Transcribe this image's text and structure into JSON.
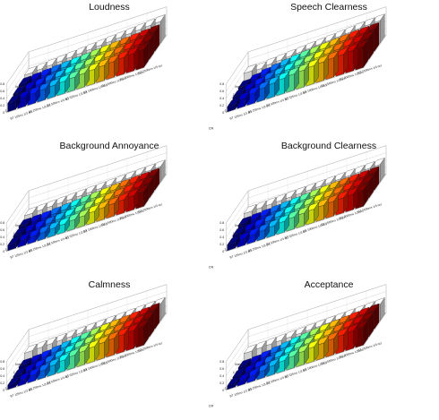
{
  "chart_data": [
    {
      "type": "bar",
      "title": "Loudness",
      "zlim": [
        0,
        0.8
      ],
      "zticks": [
        "0",
        "0.2",
        "0.4",
        "0.6",
        "0.8"
      ],
      "depth_ticks": [
        "linear",
        "1.5",
        "2",
        "3"
      ],
      "depth_label": "CR",
      "row_labels": [
        "BT 7500ms 1/3 oct",
        "BT 3000ms 1/3 oct",
        "BT 1500ms 1/3 oct",
        "BT 1000ms 1/3 oct",
        "BT 625ms 1/3 oct",
        "BT 500ms 1/3 oct",
        "BT 250ms 1/3 oct",
        "BT 125ms 1/3 oct"
      ],
      "series": [
        {
          "name": "linear",
          "values": [
            0.35,
            0.37,
            0.39,
            0.41,
            0.43,
            0.45,
            0.47,
            0.49,
            0.51,
            0.53,
            0.55,
            0.57,
            0.59,
            0.61
          ]
        },
        {
          "name": "1.5",
          "values": [
            0.3,
            0.32,
            0.34,
            0.36,
            0.38,
            0.4,
            0.42,
            0.44,
            0.46,
            0.48,
            0.5,
            0.52,
            0.54,
            0.56
          ]
        },
        {
          "name": "2",
          "values": [
            0.27,
            0.29,
            0.31,
            0.33,
            0.35,
            0.37,
            0.39,
            0.41,
            0.43,
            0.45,
            0.47,
            0.49,
            0.51,
            0.53
          ]
        },
        {
          "name": "3",
          "values": [
            0.24,
            0.26,
            0.28,
            0.3,
            0.32,
            0.34,
            0.36,
            0.38,
            0.4,
            0.42,
            0.44,
            0.46,
            0.48,
            0.5
          ]
        }
      ]
    },
    {
      "type": "bar",
      "title": "Speech Clearness",
      "zlim": [
        0,
        0.8
      ],
      "zticks": [
        "0",
        "0.2",
        "0.4",
        "0.6",
        "0.8"
      ],
      "depth_ticks": [
        "linear",
        "1.5",
        "2",
        "3"
      ],
      "depth_label": "CR",
      "row_labels": [
        "BT 7500ms 1/3 oct",
        "BT 3000ms 1/3 oct",
        "BT 1500ms 1/3 oct",
        "BT 1000ms 1/3 oct",
        "BT 625ms 1/3 oct",
        "BT 500ms 1/3 oct",
        "BT 250ms 1/3 oct",
        "BT 125ms 1/3 oct"
      ],
      "series": [
        {
          "name": "linear",
          "values": [
            0.4,
            0.38,
            0.42,
            0.44,
            0.46,
            0.48,
            0.5,
            0.52,
            0.54,
            0.56,
            0.58,
            0.6,
            0.62,
            0.63
          ]
        },
        {
          "name": "1.5",
          "values": [
            0.22,
            0.3,
            0.36,
            0.4,
            0.44,
            0.47,
            0.5,
            0.52,
            0.54,
            0.56,
            0.58,
            0.6,
            0.61,
            0.62
          ]
        },
        {
          "name": "2",
          "values": [
            0.18,
            0.26,
            0.32,
            0.38,
            0.42,
            0.45,
            0.48,
            0.5,
            0.52,
            0.54,
            0.56,
            0.58,
            0.59,
            0.6
          ]
        },
        {
          "name": "3",
          "values": [
            0.14,
            0.22,
            0.28,
            0.34,
            0.38,
            0.42,
            0.45,
            0.47,
            0.5,
            0.52,
            0.54,
            0.55,
            0.57,
            0.58
          ]
        }
      ]
    },
    {
      "type": "bar",
      "title": "Background Annoyance",
      "zlim": [
        0,
        0.8
      ],
      "zticks": [
        "0",
        "0.2",
        "0.4",
        "0.6",
        "0.8"
      ],
      "depth_ticks": [
        "linear",
        "1.5",
        "2",
        "3"
      ],
      "depth_label": "CR",
      "row_labels": [
        "BT 7500ms 1/3 oct",
        "BT 3000ms 1/3 oct",
        "BT 1500ms 1/3 oct",
        "BT 1000ms 1/3 oct",
        "BT 625ms 1/3 oct",
        "BT 500ms 1/3 oct",
        "BT 250ms 1/3 oct",
        "BT 125ms 1/3 oct"
      ],
      "series": [
        {
          "name": "linear",
          "values": [
            0.3,
            0.31,
            0.32,
            0.33,
            0.34,
            0.35,
            0.36,
            0.37,
            0.38,
            0.39,
            0.4,
            0.41,
            0.42,
            0.43
          ]
        },
        {
          "name": "1.5",
          "values": [
            0.22,
            0.23,
            0.24,
            0.26,
            0.28,
            0.3,
            0.32,
            0.34,
            0.36,
            0.38,
            0.4,
            0.41,
            0.42,
            0.43
          ]
        },
        {
          "name": "2",
          "values": [
            0.18,
            0.19,
            0.2,
            0.22,
            0.24,
            0.26,
            0.28,
            0.3,
            0.33,
            0.35,
            0.37,
            0.39,
            0.41,
            0.42
          ]
        },
        {
          "name": "3",
          "values": [
            0.15,
            0.16,
            0.17,
            0.19,
            0.21,
            0.23,
            0.26,
            0.28,
            0.31,
            0.33,
            0.35,
            0.37,
            0.39,
            0.41
          ]
        }
      ]
    },
    {
      "type": "bar",
      "title": "Background Clearness",
      "zlim": [
        0,
        0.8
      ],
      "zticks": [
        "0",
        "0.2",
        "0.4",
        "0.6",
        "0.8"
      ],
      "depth_ticks": [
        "linear",
        "1.5",
        "2",
        "3"
      ],
      "depth_label": "CR",
      "row_labels": [
        "BT 7500ms 1/3 oct",
        "BT 3000ms 1/3 oct",
        "BT 1500ms 1/3 oct",
        "BT 1000ms 1/3 oct",
        "BT 625ms 1/3 oct",
        "BT 500ms 1/3 oct",
        "BT 250ms 1/3 oct",
        "BT 125ms 1/3 oct"
      ],
      "series": [
        {
          "name": "linear",
          "values": [
            0.36,
            0.37,
            0.38,
            0.39,
            0.4,
            0.41,
            0.42,
            0.43,
            0.44,
            0.45,
            0.46,
            0.47,
            0.48,
            0.49
          ]
        },
        {
          "name": "1.5",
          "values": [
            0.26,
            0.28,
            0.3,
            0.32,
            0.34,
            0.36,
            0.38,
            0.4,
            0.42,
            0.44,
            0.45,
            0.46,
            0.47,
            0.48
          ]
        },
        {
          "name": "2",
          "values": [
            0.2,
            0.22,
            0.25,
            0.28,
            0.31,
            0.34,
            0.36,
            0.38,
            0.4,
            0.42,
            0.43,
            0.44,
            0.45,
            0.46
          ]
        },
        {
          "name": "3",
          "values": [
            0.16,
            0.18,
            0.21,
            0.24,
            0.27,
            0.3,
            0.33,
            0.35,
            0.37,
            0.39,
            0.41,
            0.42,
            0.43,
            0.44
          ]
        }
      ]
    },
    {
      "type": "bar",
      "title": "Calmness",
      "zlim": [
        0,
        0.8
      ],
      "zticks": [
        "0",
        "0.2",
        "0.4",
        "0.6",
        "0.8"
      ],
      "depth_ticks": [
        "linear",
        "1.5",
        "2",
        "3"
      ],
      "depth_label": "CR",
      "row_labels": [
        "BT 7500ms 1/3 oct",
        "BT 3000ms 1/3 oct",
        "BT 1500ms 1/3 oct",
        "BT 1000ms 1/3 oct",
        "BT 625ms 1/3 oct",
        "BT 500ms 1/3 oct",
        "BT 250ms 1/3 oct",
        "BT 125ms 1/3 oct"
      ],
      "series": [
        {
          "name": "linear",
          "values": [
            0.34,
            0.35,
            0.36,
            0.37,
            0.38,
            0.39,
            0.4,
            0.41,
            0.42,
            0.43,
            0.44,
            0.45,
            0.46,
            0.47
          ]
        },
        {
          "name": "1.5",
          "values": [
            0.18,
            0.2,
            0.23,
            0.27,
            0.31,
            0.35,
            0.38,
            0.41,
            0.44,
            0.46,
            0.48,
            0.5,
            0.52,
            0.54
          ]
        },
        {
          "name": "2",
          "values": [
            0.14,
            0.16,
            0.19,
            0.23,
            0.28,
            0.33,
            0.37,
            0.4,
            0.43,
            0.45,
            0.47,
            0.49,
            0.51,
            0.53
          ]
        },
        {
          "name": "3",
          "values": [
            0.12,
            0.14,
            0.17,
            0.21,
            0.26,
            0.31,
            0.35,
            0.38,
            0.41,
            0.44,
            0.46,
            0.48,
            0.5,
            0.52
          ]
        }
      ]
    },
    {
      "type": "bar",
      "title": "Acceptance",
      "zlim": [
        0,
        0.8
      ],
      "zticks": [
        "0",
        "0.2",
        "0.4",
        "0.6",
        "0.8"
      ],
      "depth_ticks": [
        "linear",
        "1.5",
        "2",
        "3"
      ],
      "depth_label": "CR",
      "row_labels": [
        "BT 7500ms 1/3 oct",
        "BT 3000ms 1/3 oct",
        "BT 1500ms 1/3 oct",
        "BT 1000ms 1/3 oct",
        "BT 625ms 1/3 oct",
        "BT 500ms 1/3 oct",
        "BT 250ms 1/3 oct",
        "BT 125ms 1/3 oct"
      ],
      "series": [
        {
          "name": "linear",
          "values": [
            0.33,
            0.34,
            0.35,
            0.36,
            0.37,
            0.38,
            0.39,
            0.4,
            0.41,
            0.42,
            0.43,
            0.44,
            0.45,
            0.46
          ]
        },
        {
          "name": "1.5",
          "values": [
            0.16,
            0.18,
            0.22,
            0.26,
            0.3,
            0.34,
            0.37,
            0.4,
            0.43,
            0.45,
            0.47,
            0.49,
            0.51,
            0.52
          ]
        },
        {
          "name": "2",
          "values": [
            0.12,
            0.14,
            0.18,
            0.22,
            0.27,
            0.31,
            0.35,
            0.38,
            0.41,
            0.43,
            0.46,
            0.48,
            0.5,
            0.51
          ]
        },
        {
          "name": "3",
          "values": [
            0.1,
            0.12,
            0.16,
            0.2,
            0.25,
            0.29,
            0.33,
            0.37,
            0.4,
            0.42,
            0.45,
            0.47,
            0.49,
            0.5
          ]
        }
      ]
    }
  ]
}
